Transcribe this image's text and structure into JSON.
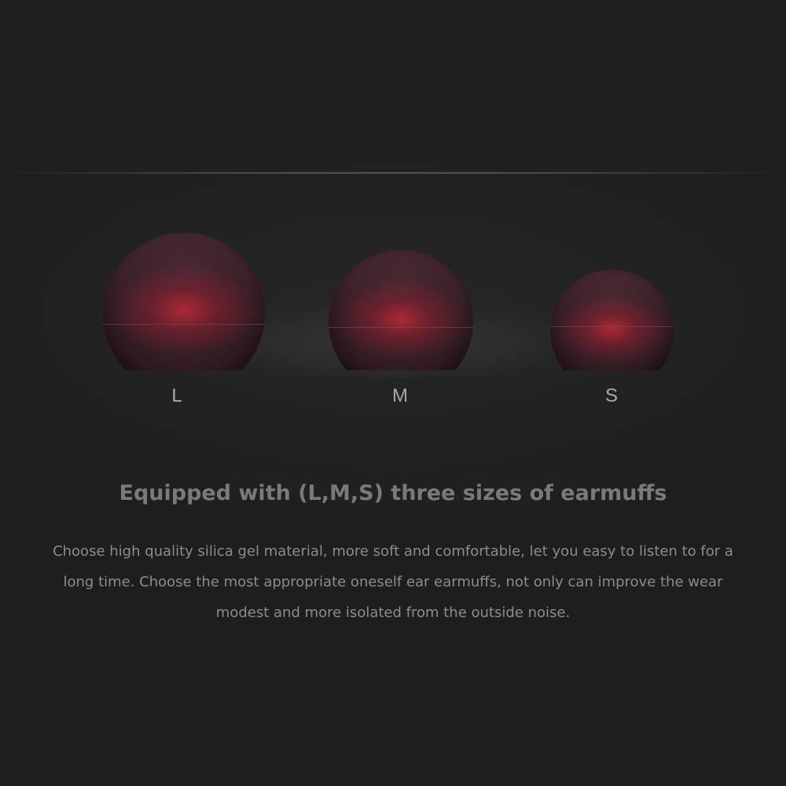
{
  "sizes": {
    "large": "L",
    "medium": "M",
    "small": "S"
  },
  "headline": "Equipped with (L,M,S) three sizes of earmuffs",
  "description": "Choose high quality silica gel material, more soft and comfortable, let you easy to listen to for a long time. Choose the most appropriate oneself ear earmuffs, not only can improve the wear modest and more isolated from the outside noise.",
  "colors": {
    "background": "#202020",
    "ear_tip": "#3a2028",
    "ear_tip_glow": "#be2837",
    "label_text": "#a9a9a9",
    "headline_text": "#7a7a7a"
  }
}
